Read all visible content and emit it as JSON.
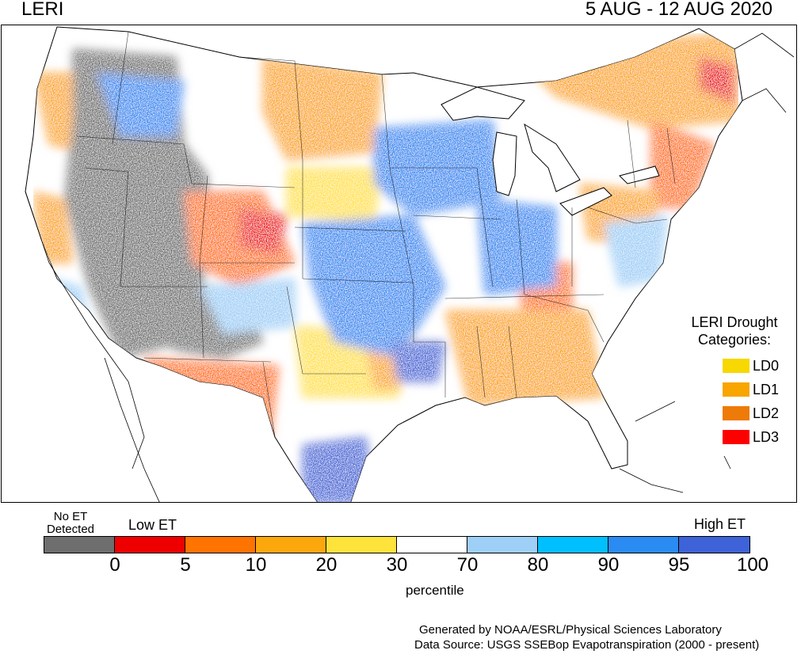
{
  "title": "LERI",
  "date_range": "5 AUG - 12 AUG 2020",
  "legend": {
    "title_line1": "LERI Drought",
    "title_line2": "Categories:",
    "categories": [
      {
        "label": "LD0",
        "color": "#f7d800"
      },
      {
        "label": "LD1",
        "color": "#f8a500"
      },
      {
        "label": "LD2",
        "color": "#ee7b07"
      },
      {
        "label": "LD3",
        "color": "#ff0000"
      }
    ]
  },
  "colorbar": {
    "no_et_line1": "No ET",
    "no_et_line2": "Detected",
    "low_label": "Low ET",
    "high_label": "High ET",
    "unit_label": "percentile",
    "segments": [
      {
        "color": "#6e6e6e"
      },
      {
        "color": "#ee0000"
      },
      {
        "color": "#ff7300"
      },
      {
        "color": "#fca80c"
      },
      {
        "color": "#ffe23a"
      },
      {
        "color": "#ffffff"
      },
      {
        "color": "#9ecff7"
      },
      {
        "color": "#00bfff"
      },
      {
        "color": "#2a8bf2"
      },
      {
        "color": "#3e63d8"
      }
    ],
    "ticks": [
      "0",
      "5",
      "10",
      "20",
      "30",
      "70",
      "80",
      "90",
      "95",
      "100"
    ]
  },
  "credits": {
    "line1": "Generated by NOAA/ESRL/Physical Sciences Laboratory",
    "line2": "Data Source: USGS SSEBop Evapotranspiration (2000 - present)"
  }
}
